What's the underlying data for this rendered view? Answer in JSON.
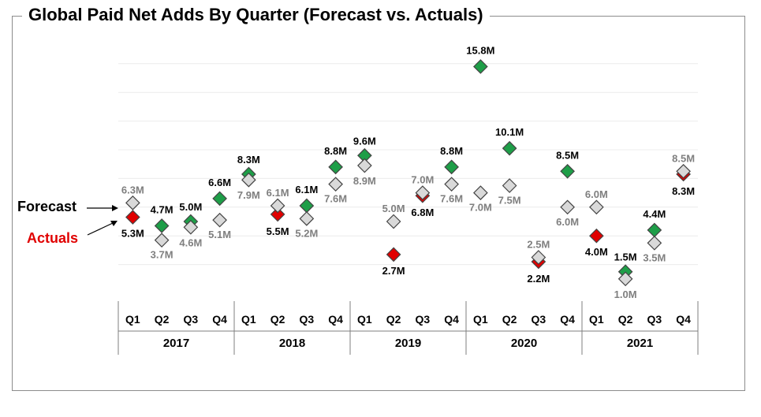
{
  "title": "Global Paid Net Adds By Quarter (Forecast vs. Actuals)",
  "legend": {
    "forecast": "Forecast",
    "actuals": "Actuals"
  },
  "colors": {
    "actual_beat": "#1e9e48",
    "actual_miss": "#e00000",
    "forecast": "#d9d9d9",
    "forecast_label": "#7f7f7f",
    "actual_label": "#000000"
  },
  "chart_data": {
    "type": "scatter",
    "title": "Global Paid Net Adds By Quarter (Forecast vs. Actuals)",
    "unit": "M",
    "ylim": [
      0,
      17
    ],
    "grid": true,
    "quarters": [
      "Q1",
      "Q2",
      "Q3",
      "Q4"
    ],
    "years": [
      "2017",
      "2018",
      "2019",
      "2020",
      "2021"
    ],
    "categories": [
      "Q1 2017",
      "Q2 2017",
      "Q3 2017",
      "Q4 2017",
      "Q1 2018",
      "Q2 2018",
      "Q3 2018",
      "Q4 2018",
      "Q1 2019",
      "Q2 2019",
      "Q3 2019",
      "Q4 2019",
      "Q1 2020",
      "Q2 2020",
      "Q3 2020",
      "Q4 2020",
      "Q1 2021",
      "Q2 2021",
      "Q3 2021",
      "Q4 2021"
    ],
    "series": [
      {
        "name": "Forecast",
        "values": [
          6.3,
          3.7,
          4.6,
          5.1,
          7.9,
          6.1,
          5.2,
          7.6,
          8.9,
          5.0,
          7.0,
          7.6,
          7.0,
          7.5,
          2.5,
          6.0,
          6.0,
          1.0,
          3.5,
          8.5
        ],
        "labels": [
          "6.3M",
          "3.7M",
          "4.6M",
          "5.1M",
          "7.9M",
          "6.1M",
          "5.2M",
          "7.6M",
          "8.9M",
          "5.0M",
          "7.0M",
          "7.6M",
          "7.0M",
          "7.5M",
          "2.5M",
          "6.0M",
          "6.0M",
          "1.0M",
          "3.5M",
          "8.5M"
        ]
      },
      {
        "name": "Actuals",
        "values": [
          5.3,
          4.7,
          5.0,
          6.6,
          8.3,
          5.5,
          6.1,
          8.8,
          9.6,
          2.7,
          6.8,
          8.8,
          15.8,
          10.1,
          2.2,
          8.5,
          4.0,
          1.5,
          4.4,
          8.3
        ],
        "labels": [
          "5.3M",
          "4.7M",
          "5.0M",
          "6.6M",
          "8.3M",
          "5.5M",
          "6.1M",
          "8.8M",
          "9.6M",
          "2.7M",
          "6.8M",
          "8.8M",
          "15.8M",
          "10.1M",
          "2.2M",
          "8.5M",
          "4.0M",
          "1.5M",
          "4.4M",
          "8.3M"
        ]
      }
    ]
  }
}
